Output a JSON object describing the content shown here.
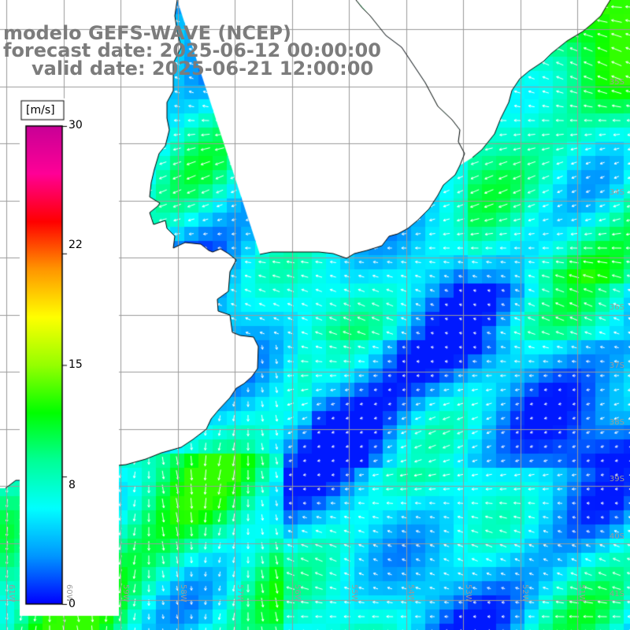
{
  "header": {
    "line1": "modelo GEFS-WAVE (NCEP)",
    "line2": "forecast date: 2025-06-12 00:00:00",
    "line3": "valid date: 2025-06-21 12:00:00"
  },
  "colorbar": {
    "unit": "[m/s]",
    "ticks": [
      "30",
      "22",
      "15",
      "8",
      "0"
    ],
    "tick_values": [
      30,
      22,
      15,
      8,
      0
    ],
    "colors": [
      "#0000ff",
      "#0096ff",
      "#00ffff",
      "#00ff96",
      "#00ff00",
      "#96ff00",
      "#ffff00",
      "#ff9600",
      "#ff0000",
      "#ff0096",
      "#c80096"
    ]
  },
  "lat_labels": [
    "35S",
    "34S",
    "36S",
    "37S",
    "38S",
    "39S",
    "40S",
    "41S"
  ],
  "lon_labels": [
    "61W",
    "60W",
    "59W",
    "58W",
    "57W",
    "56W",
    "55W",
    "54W",
    "53W",
    "52W",
    "51W"
  ],
  "map": {
    "region": "Rio de la Plata / Uruguay / Buenos Aires coast",
    "land_color": "#ffffff",
    "coast_color": "#000000",
    "grid_color": "#9a9a9a",
    "arrow_color": "#ffffff"
  }
}
